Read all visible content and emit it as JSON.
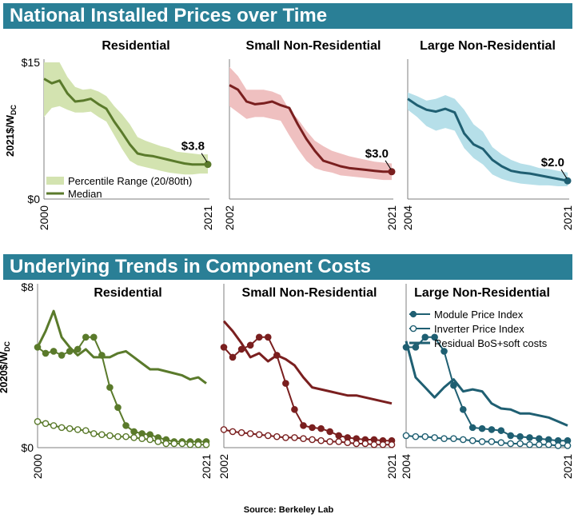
{
  "banners": {
    "top": "National Installed Prices over Time",
    "bottom": "Underlying Trends in Component Costs"
  },
  "source": "Source: Berkeley Lab",
  "colors": {
    "banner": "#2a7f96",
    "residential": "#5a7a2b",
    "residential_band": "#d3e3b0",
    "small_nonres": "#7a1f1f",
    "small_nonres_band": "#efc0c0",
    "large_nonres": "#1f5f72",
    "large_nonres_band": "#b6dfe9"
  },
  "chart_data": [
    {
      "type": "line",
      "title": "Residential",
      "ylabel": "2021$/WDC",
      "ylabel_main": "2021$/W",
      "ylabel_sub": "DC",
      "yticks": [
        "$15",
        "$0"
      ],
      "ylim": [
        0,
        15
      ],
      "xlim": [
        2000,
        2021
      ],
      "xticks": [
        "2000",
        "2021"
      ],
      "x": [
        2000,
        2001,
        2002,
        2003,
        2004,
        2005,
        2006,
        2007,
        2008,
        2009,
        2010,
        2011,
        2012,
        2013,
        2014,
        2015,
        2016,
        2017,
        2018,
        2019,
        2020,
        2021
      ],
      "series": [
        {
          "name": "Percentile Range (20/80th)",
          "kind": "band",
          "low": [
            9.0,
            10.0,
            10.2,
            9.8,
            9.5,
            9.5,
            9.6,
            9.0,
            8.5,
            7.0,
            5.5,
            4.2,
            3.7,
            3.5,
            3.3,
            3.1,
            2.9,
            2.8,
            2.7,
            2.7,
            2.8,
            2.8
          ],
          "high": [
            15.0,
            15.0,
            15.0,
            13.4,
            12.3,
            12.0,
            12.1,
            11.8,
            11.3,
            10.2,
            9.3,
            8.2,
            6.8,
            6.4,
            6.1,
            5.8,
            5.6,
            5.2,
            5.1,
            5.0,
            4.9,
            4.9
          ]
        },
        {
          "name": "Median",
          "kind": "line",
          "values": [
            13.2,
            12.7,
            13.0,
            11.6,
            10.7,
            10.8,
            11.0,
            10.4,
            9.9,
            8.5,
            7.3,
            6.0,
            5.0,
            4.8,
            4.7,
            4.5,
            4.3,
            4.1,
            3.9,
            3.8,
            3.8,
            3.8
          ]
        }
      ],
      "annotation": {
        "text": "$3.8",
        "x": 2021,
        "y": 3.8
      }
    },
    {
      "type": "line",
      "title": "Small Non-Residential",
      "ylim": [
        0,
        15
      ],
      "xlim": [
        2002,
        2021
      ],
      "xticks": [
        "2002",
        "2021"
      ],
      "x": [
        2002,
        2003,
        2004,
        2005,
        2006,
        2007,
        2008,
        2009,
        2010,
        2011,
        2012,
        2013,
        2014,
        2015,
        2016,
        2017,
        2018,
        2019,
        2020,
        2021
      ],
      "series": [
        {
          "name": "Percentile Range (20/80th)",
          "kind": "band",
          "low": [
            10.2,
            9.5,
            8.8,
            9.0,
            9.0,
            8.8,
            8.6,
            7.0,
            5.5,
            4.2,
            3.4,
            3.1,
            2.9,
            2.6,
            2.5,
            2.4,
            2.3,
            2.2,
            2.1,
            2.1
          ],
          "high": [
            14.5,
            13.5,
            12.0,
            12.0,
            12.0,
            11.8,
            11.4,
            9.8,
            8.8,
            7.5,
            6.4,
            5.8,
            5.3,
            5.0,
            4.7,
            4.5,
            4.3,
            4.1,
            4.0,
            3.9
          ]
        },
        {
          "name": "Median",
          "kind": "line",
          "values": [
            12.5,
            12.0,
            10.7,
            10.4,
            10.5,
            10.7,
            10.3,
            10.0,
            8.2,
            6.6,
            5.3,
            4.2,
            3.9,
            3.6,
            3.4,
            3.3,
            3.2,
            3.1,
            3.0,
            3.0
          ]
        }
      ],
      "annotation": {
        "text": "$3.0",
        "x": 2021,
        "y": 3.0
      }
    },
    {
      "type": "line",
      "title": "Large Non-Residential",
      "ylim": [
        0,
        15
      ],
      "xlim": [
        2004,
        2021
      ],
      "xticks": [
        "2004",
        "2021"
      ],
      "x": [
        2004,
        2005,
        2006,
        2007,
        2008,
        2009,
        2010,
        2011,
        2012,
        2013,
        2014,
        2015,
        2016,
        2017,
        2018,
        2019,
        2020,
        2021
      ],
      "series": [
        {
          "name": "Percentile Range (20/80th)",
          "kind": "band",
          "low": [
            9.8,
            9.0,
            8.0,
            7.5,
            7.8,
            7.5,
            5.6,
            4.5,
            3.8,
            2.7,
            2.2,
            1.9,
            1.7,
            1.6,
            1.5,
            1.5,
            1.4,
            1.4
          ],
          "high": [
            11.7,
            11.3,
            10.8,
            11.0,
            11.4,
            11.0,
            9.8,
            8.2,
            7.4,
            5.7,
            4.9,
            4.3,
            3.9,
            3.7,
            3.4,
            3.3,
            3.1,
            2.9
          ]
        },
        {
          "name": "Median",
          "kind": "line",
          "values": [
            11.0,
            10.3,
            9.8,
            9.6,
            9.9,
            9.5,
            7.2,
            6.0,
            5.5,
            4.3,
            3.6,
            3.1,
            2.9,
            2.8,
            2.6,
            2.4,
            2.2,
            2.0
          ]
        }
      ],
      "annotation": {
        "text": "$2.0",
        "x": 2021,
        "y": 2.0
      }
    },
    {
      "type": "line",
      "title": "Residential",
      "ylabel": "2020$/WDC",
      "ylabel_main": "2020$/W",
      "ylabel_sub": "DC",
      "yticks": [
        "$8",
        "$0"
      ],
      "ylim": [
        0,
        8
      ],
      "xlim": [
        2000,
        2021
      ],
      "xticks": [
        "2000",
        "2021"
      ],
      "x": [
        2000,
        2001,
        2002,
        2003,
        2004,
        2005,
        2006,
        2007,
        2008,
        2009,
        2010,
        2011,
        2012,
        2013,
        2014,
        2015,
        2016,
        2017,
        2018,
        2019,
        2020,
        2021
      ],
      "series": [
        {
          "name": "Module Price Index",
          "kind": "filled",
          "values": [
            5.0,
            4.7,
            4.8,
            4.6,
            4.8,
            4.9,
            5.5,
            5.5,
            4.6,
            3.0,
            2.0,
            1.1,
            0.8,
            0.7,
            0.65,
            0.5,
            0.4,
            0.3,
            0.3,
            0.3,
            0.3,
            0.3
          ]
        },
        {
          "name": "Inverter Price Index",
          "kind": "open",
          "values": [
            1.3,
            1.2,
            1.1,
            1.0,
            0.95,
            0.9,
            0.85,
            0.7,
            0.65,
            0.6,
            0.55,
            0.55,
            0.5,
            0.45,
            0.4,
            0.3,
            0.2,
            0.2,
            0.2,
            0.15,
            0.15,
            0.15
          ]
        },
        {
          "name": "Residual BoS+soft costs",
          "kind": "line",
          "values": [
            5.0,
            5.8,
            6.8,
            5.5,
            5.0,
            4.6,
            4.9,
            4.5,
            4.5,
            4.5,
            4.7,
            4.8,
            4.5,
            4.2,
            3.9,
            3.9,
            3.8,
            3.7,
            3.6,
            3.4,
            3.5,
            3.2
          ]
        }
      ]
    },
    {
      "type": "line",
      "title": "Small Non-Residential",
      "ylim": [
        0,
        8
      ],
      "xlim": [
        2002,
        2021
      ],
      "xticks": [
        "2002",
        "2021"
      ],
      "x": [
        2002,
        2003,
        2004,
        2005,
        2006,
        2007,
        2008,
        2009,
        2010,
        2011,
        2012,
        2013,
        2014,
        2015,
        2016,
        2017,
        2018,
        2019,
        2020,
        2021
      ],
      "series": [
        {
          "name": "Module Price Index",
          "kind": "filled",
          "values": [
            5.0,
            4.5,
            4.9,
            5.1,
            5.5,
            5.5,
            4.6,
            3.2,
            1.9,
            1.1,
            1.0,
            0.95,
            0.8,
            0.6,
            0.5,
            0.45,
            0.4,
            0.4,
            0.35,
            0.35
          ]
        },
        {
          "name": "Inverter Price Index",
          "kind": "open",
          "values": [
            0.9,
            0.8,
            0.75,
            0.7,
            0.65,
            0.6,
            0.55,
            0.5,
            0.5,
            0.45,
            0.4,
            0.35,
            0.3,
            0.3,
            0.25,
            0.2,
            0.2,
            0.15,
            0.15,
            0.15
          ]
        },
        {
          "name": "Residual BoS+soft costs",
          "kind": "line",
          "values": [
            6.3,
            5.8,
            5.2,
            4.5,
            4.7,
            4.3,
            4.6,
            4.4,
            4.1,
            3.5,
            3.0,
            2.9,
            2.8,
            2.7,
            2.6,
            2.6,
            2.5,
            2.4,
            2.3,
            2.2
          ]
        }
      ]
    },
    {
      "type": "line",
      "title": "Large Non-Residential",
      "ylim": [
        0,
        8
      ],
      "xlim": [
        2004,
        2021
      ],
      "xticks": [
        "2004",
        "2021"
      ],
      "x": [
        2004,
        2005,
        2006,
        2007,
        2008,
        2009,
        2010,
        2011,
        2012,
        2013,
        2014,
        2015,
        2016,
        2017,
        2018,
        2019,
        2020,
        2021
      ],
      "series": [
        {
          "name": "Module Price Index",
          "kind": "filled",
          "values": [
            5.0,
            5.0,
            5.5,
            5.5,
            4.8,
            3.1,
            1.9,
            1.0,
            0.95,
            0.9,
            0.85,
            0.6,
            0.55,
            0.5,
            0.45,
            0.4,
            0.35,
            0.35
          ]
        },
        {
          "name": "Inverter Price Index",
          "kind": "open",
          "values": [
            0.6,
            0.55,
            0.55,
            0.5,
            0.45,
            0.45,
            0.4,
            0.35,
            0.3,
            0.3,
            0.25,
            0.2,
            0.2,
            0.15,
            0.15,
            0.15,
            0.1,
            0.1
          ]
        },
        {
          "name": "Residual BoS+soft costs",
          "kind": "line",
          "values": [
            5.3,
            3.5,
            3.0,
            2.5,
            3.0,
            3.4,
            2.8,
            2.9,
            2.8,
            2.2,
            1.95,
            1.9,
            1.7,
            1.7,
            1.6,
            1.5,
            1.3,
            1.1
          ]
        }
      ]
    }
  ],
  "legends": {
    "top": [
      "Percentile Range (20/80th)",
      "Median"
    ],
    "bottom": [
      "Module Price Index",
      "Inverter Price Index",
      "Residual BoS+soft costs"
    ]
  }
}
